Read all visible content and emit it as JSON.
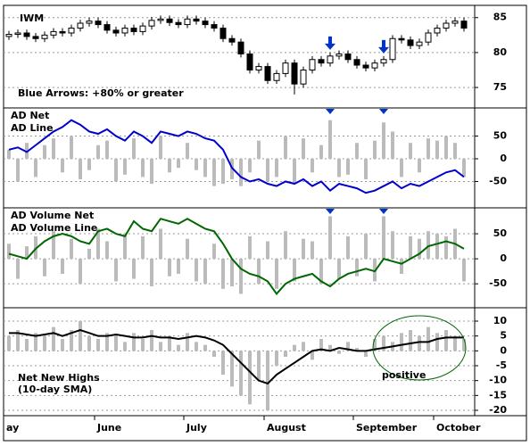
{
  "chart_data": [
    {
      "type": "candlestick",
      "title": "IWM",
      "annotation": "Blue Arrows: +80% or greater",
      "annotation_color": "#0000cc",
      "open": [
        82.3,
        82.6,
        82.8,
        82.3,
        82.0,
        82.5,
        83.0,
        82.8,
        83.5,
        84.2,
        84.5,
        84.0,
        83.2,
        82.8,
        83.5,
        83.0,
        83.8,
        84.6,
        84.8,
        84.3,
        84.0,
        84.8,
        84.5,
        84.0,
        83.5,
        82.0,
        81.5,
        79.8,
        77.5,
        78.0,
        76.0,
        77.0,
        78.5,
        75.5,
        77.5,
        79.0,
        78.5,
        79.5,
        79.8,
        79.0,
        78.2,
        77.8,
        78.5,
        79.0,
        82.0,
        81.8,
        81.0,
        81.5,
        82.8,
        83.5,
        84.2,
        84.5
      ],
      "high": [
        83.1,
        83.3,
        83.3,
        82.8,
        83.0,
        83.5,
        83.5,
        84.0,
        84.7,
        85.0,
        85.0,
        84.5,
        83.7,
        84.0,
        84.0,
        84.3,
        85.1,
        85.3,
        85.3,
        84.8,
        85.3,
        85.3,
        85.0,
        84.5,
        84.0,
        82.5,
        82.0,
        80.3,
        78.5,
        78.5,
        77.5,
        79.0,
        79.0,
        78.0,
        79.5,
        79.5,
        80.0,
        80.3,
        80.3,
        79.5,
        78.7,
        79.0,
        79.5,
        82.5,
        82.5,
        82.3,
        82.0,
        83.3,
        84.0,
        84.7,
        85.0,
        85.0
      ],
      "low": [
        81.8,
        82.1,
        81.8,
        81.5,
        81.5,
        82.0,
        82.3,
        82.3,
        83.0,
        83.7,
        83.5,
        82.7,
        82.3,
        82.3,
        82.5,
        82.5,
        83.3,
        84.1,
        83.8,
        83.5,
        83.5,
        84.0,
        83.5,
        83.0,
        81.5,
        81.0,
        79.3,
        77.0,
        77.0,
        75.5,
        75.5,
        76.5,
        74.0,
        75.0,
        77.0,
        78.0,
        78.0,
        79.0,
        78.5,
        77.7,
        77.3,
        77.3,
        78.0,
        78.5,
        81.3,
        80.5,
        80.5,
        81.0,
        82.3,
        83.0,
        83.7,
        83.0
      ],
      "close": [
        82.6,
        82.8,
        82.3,
        82.0,
        82.5,
        83.0,
        82.8,
        83.5,
        84.2,
        84.5,
        84.0,
        83.2,
        82.8,
        83.5,
        83.0,
        83.8,
        84.6,
        84.8,
        84.3,
        84.0,
        84.8,
        84.5,
        84.0,
        83.5,
        82.0,
        81.5,
        79.8,
        77.5,
        78.0,
        76.0,
        77.0,
        78.5,
        75.5,
        77.5,
        79.0,
        78.5,
        79.5,
        79.8,
        79.0,
        78.2,
        77.8,
        78.5,
        79.0,
        82.0,
        81.8,
        81.0,
        81.5,
        82.8,
        83.5,
        84.2,
        84.5,
        83.5
      ],
      "arrows": [
        36,
        42
      ],
      "arrow_color": "#0033cc",
      "ylim": [
        72.2,
        86.5
      ],
      "yticks": [
        75,
        80,
        85
      ],
      "grid": true
    },
    {
      "type": "combo",
      "legend_color": "#0000cc",
      "series": [
        {
          "name": "AD Net",
          "type": "bar",
          "color": "#bbbbbb",
          "values": [
            20,
            -50,
            35,
            -40,
            30,
            45,
            -30,
            50,
            -45,
            -25,
            30,
            40,
            -50,
            -35,
            45,
            -40,
            -55,
            50,
            -30,
            -20,
            35,
            -25,
            -40,
            -60,
            -55,
            -45,
            -60,
            -30,
            40,
            -50,
            -40,
            50,
            -55,
            45,
            -30,
            30,
            85,
            -40,
            -35,
            35,
            -45,
            40,
            80,
            60,
            -40,
            35,
            -30,
            45,
            40,
            50,
            35,
            -40
          ]
        },
        {
          "name": "AD Line",
          "type": "line",
          "color": "#0000cc",
          "values": [
            20,
            25,
            15,
            30,
            45,
            60,
            70,
            85,
            75,
            60,
            55,
            65,
            50,
            40,
            60,
            50,
            35,
            60,
            55,
            50,
            60,
            55,
            45,
            40,
            20,
            -20,
            -40,
            -50,
            -45,
            -55,
            -60,
            -50,
            -55,
            -45,
            -60,
            -50,
            -70,
            -55,
            -60,
            -65,
            -75,
            -70,
            -60,
            -50,
            -65,
            -55,
            -60,
            -50,
            -40,
            -30,
            -25,
            -40
          ]
        }
      ],
      "ylim": [
        -106,
        110
      ],
      "yticks": [
        -50,
        0,
        50
      ],
      "grid": true
    },
    {
      "type": "combo",
      "legend_color": "#006600",
      "series": [
        {
          "name": "AD Volume Net",
          "type": "bar",
          "color": "#bbbbbb",
          "values": [
            30,
            -40,
            25,
            45,
            -35,
            55,
            -30,
            40,
            -50,
            20,
            60,
            35,
            -45,
            50,
            -40,
            45,
            -55,
            60,
            -35,
            -30,
            40,
            -45,
            -50,
            30,
            -60,
            -55,
            -70,
            45,
            -50,
            35,
            -60,
            55,
            -45,
            40,
            35,
            -50,
            85,
            -40,
            45,
            -35,
            50,
            -45,
            85,
            55,
            -30,
            45,
            40,
            55,
            50,
            45,
            60,
            -45
          ]
        },
        {
          "name": "AD Volume Line",
          "type": "line",
          "color": "#006600",
          "values": [
            10,
            5,
            0,
            20,
            35,
            45,
            50,
            45,
            35,
            30,
            55,
            60,
            50,
            45,
            75,
            60,
            55,
            80,
            75,
            70,
            80,
            70,
            60,
            55,
            30,
            0,
            -20,
            -30,
            -35,
            -45,
            -70,
            -50,
            -40,
            -35,
            -30,
            -45,
            -55,
            -40,
            -30,
            -25,
            -20,
            -25,
            0,
            -5,
            -10,
            0,
            10,
            25,
            30,
            35,
            30,
            20
          ]
        }
      ],
      "ylim": [
        -96,
        100
      ],
      "yticks": [
        -50,
        0,
        50
      ],
      "grid": true
    },
    {
      "type": "combo",
      "title_lines": [
        "Net New Highs",
        "(10-day SMA)"
      ],
      "annotation": "positive",
      "annotation_color": "#006600",
      "series": [
        {
          "type": "bar",
          "color": "#bbbbbb",
          "values": [
            5,
            7,
            4,
            6,
            5,
            8,
            4,
            7,
            10,
            5,
            4,
            6,
            5,
            3,
            6,
            4,
            7,
            3,
            5,
            2,
            6,
            3,
            2,
            -2,
            -8,
            -12,
            -15,
            -18,
            -10,
            -20,
            -5,
            -2,
            2,
            3,
            -3,
            4,
            2,
            -1,
            3,
            1,
            -2,
            4,
            5,
            3,
            6,
            7,
            5,
            8,
            6,
            7,
            5,
            4
          ]
        },
        {
          "type": "line",
          "color": "#000000",
          "values": [
            6,
            6,
            5.5,
            5,
            5.5,
            6,
            5,
            6,
            7,
            6,
            5,
            5,
            5.5,
            5,
            4.5,
            4.5,
            5,
            4.5,
            4.5,
            4,
            4.5,
            5,
            4.5,
            3.5,
            2,
            -1,
            -4,
            -7,
            -10,
            -11,
            -8,
            -6,
            -4,
            -2,
            0,
            0.5,
            0,
            1,
            0.5,
            0,
            0,
            0.5,
            1,
            1.5,
            2,
            2.5,
            3,
            3,
            4,
            4.5,
            4.5,
            4.5
          ]
        }
      ],
      "categories": [
        "ay",
        null,
        null,
        null,
        null,
        null,
        null,
        null,
        null,
        null,
        "June",
        null,
        null,
        null,
        null,
        null,
        null,
        null,
        null,
        null,
        "July",
        null,
        null,
        null,
        null,
        null,
        null,
        null,
        null,
        "August",
        null,
        null,
        null,
        null,
        null,
        null,
        null,
        null,
        null,
        "September",
        null,
        null,
        null,
        null,
        null,
        null,
        null,
        null,
        "October",
        null,
        null,
        null
      ],
      "ylim": [
        -21.8,
        14.2
      ],
      "yticks": [
        -20,
        -15,
        -10,
        -5,
        0,
        5,
        10
      ],
      "grid": true
    }
  ]
}
